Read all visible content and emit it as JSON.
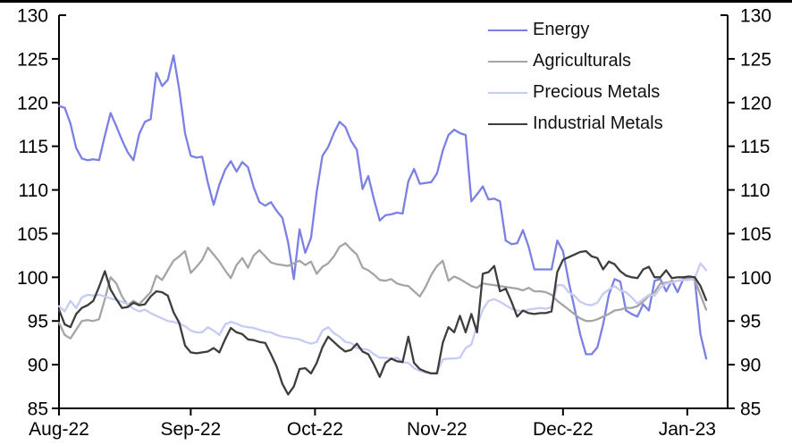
{
  "page": {
    "background": "#ffffff",
    "top_border_color": "#000000",
    "axis_color": "#000000"
  },
  "chart_data": {
    "type": "line",
    "title": "",
    "xlabel": "",
    "ylabel": "",
    "legend_position": "top-right-inside",
    "x_axis": {
      "tick_labels": [
        "Aug-22",
        "Sep-22",
        "Oct-22",
        "Nov-22",
        "Dec-22",
        "Jan-23"
      ],
      "tick_indices": [
        0,
        23,
        44.7,
        66,
        88,
        109.7
      ],
      "start": "2022-08-01",
      "end": "2023-01-05",
      "frequency": "business-daily"
    },
    "y_axis": {
      "min": 85,
      "max": 130,
      "step": 5,
      "ticks": [
        85,
        90,
        95,
        100,
        105,
        110,
        115,
        120,
        125,
        130
      ],
      "label_sides": "both",
      "grid": false
    },
    "n_points": 114,
    "series": [
      {
        "name": "Energy",
        "color": "#7b80e4",
        "values": [
          119.6,
          119.4,
          117.6,
          114.8,
          113.6,
          113.4,
          113.5,
          113.4,
          116.2,
          118.8,
          117.3,
          115.7,
          114.3,
          113.4,
          116.4,
          117.8,
          118.1,
          123.4,
          121.9,
          122.6,
          125.4,
          121.5,
          116.5,
          113.9,
          113.7,
          113.8,
          110.8,
          108.3,
          110.6,
          112.3,
          113.3,
          112.1,
          113.2,
          112.6,
          110.3,
          108.6,
          108.2,
          108.6,
          107.6,
          106.8,
          104.0,
          99.8,
          105.5,
          102.8,
          104.5,
          109.8,
          113.9,
          114.9,
          116.5,
          117.8,
          117.2,
          115.6,
          114.6,
          110.1,
          111.6,
          108.9,
          106.5,
          107.1,
          107.2,
          107.4,
          107.3,
          111.0,
          112.4,
          110.7,
          110.8,
          110.9,
          111.9,
          114.5,
          116.3,
          116.9,
          116.5,
          116.3,
          108.7,
          109.5,
          110.4,
          108.9,
          109.0,
          108.7,
          104.2,
          103.8,
          103.9,
          105.4,
          103.5,
          100.9,
          100.9,
          100.9,
          100.9,
          104.2,
          103.0,
          99.5,
          96.5,
          93.5,
          91.2,
          91.2,
          92.0,
          94.6,
          98.0,
          99.8,
          99.5,
          96.2,
          95.8,
          95.5,
          96.9,
          96.2,
          99.6,
          99.8,
          98.4,
          99.6,
          98.3,
          99.8,
          99.9,
          99.8,
          93.5,
          90.7
        ]
      },
      {
        "name": "Agriculturals",
        "color": "#a5a5a5",
        "values": [
          94.8,
          93.4,
          93.0,
          94.0,
          95.0,
          95.1,
          95.0,
          95.2,
          97.5,
          100.0,
          99.3,
          97.8,
          96.8,
          97.3,
          96.9,
          97.6,
          98.3,
          100.2,
          99.7,
          100.8,
          101.9,
          102.4,
          103.0,
          100.5,
          101.2,
          102.0,
          103.4,
          102.6,
          101.8,
          100.8,
          99.9,
          101.4,
          102.2,
          101.1,
          102.5,
          103.1,
          102.4,
          101.7,
          101.5,
          101.4,
          101.3,
          101.6,
          101.9,
          101.4,
          101.8,
          100.4,
          101.2,
          101.6,
          102.4,
          103.5,
          103.9,
          103.2,
          102.6,
          101.1,
          100.8,
          100.3,
          99.7,
          99.6,
          99.8,
          99.3,
          99.1,
          99.0,
          98.4,
          97.8,
          98.9,
          100.3,
          101.3,
          101.9,
          99.6,
          100.1,
          99.8,
          99.4,
          99.0,
          98.8,
          99.3,
          99.2,
          99.1,
          99.0,
          98.9,
          98.8,
          98.7,
          98.5,
          98.8,
          98.4,
          98.4,
          98.3,
          98.0,
          97.3,
          96.8,
          96.3,
          95.8,
          95.3,
          95.0,
          95.0,
          95.2,
          95.5,
          95.8,
          96.2,
          96.3,
          96.5,
          96.5,
          96.7,
          97.2,
          97.9,
          98.3,
          99.3,
          99.4,
          99.5,
          99.6,
          99.7,
          99.9,
          99.7,
          98.0,
          96.3
        ]
      },
      {
        "name": "Precious Metals",
        "color": "#c6cbf4",
        "values": [
          96.7,
          96.1,
          97.3,
          96.5,
          97.7,
          98.0,
          97.9,
          98.0,
          97.8,
          97.6,
          97.4,
          97.2,
          96.9,
          96.4,
          96.1,
          96.3,
          95.9,
          95.6,
          95.3,
          95.0,
          94.9,
          94.7,
          94.4,
          93.9,
          93.7,
          93.7,
          94.3,
          93.9,
          93.4,
          94.6,
          94.9,
          94.7,
          94.4,
          94.3,
          94.2,
          94.0,
          93.8,
          93.7,
          93.4,
          93.2,
          93.1,
          93.0,
          92.9,
          92.6,
          92.4,
          92.6,
          93.9,
          94.3,
          93.6,
          93.2,
          92.6,
          92.5,
          91.9,
          91.8,
          91.7,
          91.2,
          90.8,
          90.8,
          90.7,
          90.8,
          90.3,
          90.2,
          89.6,
          89.3,
          89.1,
          89.0,
          89.1,
          90.6,
          90.7,
          90.7,
          90.8,
          91.9,
          92.3,
          94.5,
          96.3,
          97.3,
          97.5,
          97.2,
          96.8,
          96.4,
          96.2,
          96.1,
          96.3,
          96.4,
          96.5,
          96.4,
          96.6,
          99.1,
          99.1,
          98.3,
          97.9,
          97.2,
          96.9,
          96.8,
          97.1,
          98.1,
          98.6,
          99.0,
          98.5,
          98.3,
          97.7,
          97.0,
          97.5,
          98.0,
          97.9,
          98.8,
          99.3,
          99.4,
          99.6,
          99.7,
          99.7,
          99.9,
          101.6,
          100.8
        ]
      },
      {
        "name": "Industrial Metals",
        "color": "#3d3d3d",
        "values": [
          96.3,
          94.6,
          94.3,
          95.8,
          96.5,
          96.8,
          97.3,
          98.9,
          100.7,
          98.6,
          97.5,
          96.5,
          96.6,
          97.1,
          96.8,
          96.9,
          97.8,
          98.4,
          98.3,
          97.9,
          96.0,
          94.8,
          92.2,
          91.4,
          91.3,
          91.4,
          91.5,
          91.9,
          91.4,
          92.9,
          94.2,
          93.7,
          93.5,
          92.9,
          92.8,
          92.6,
          92.5,
          91.2,
          89.8,
          87.8,
          86.6,
          87.5,
          89.5,
          89.6,
          89.0,
          90.2,
          92.0,
          93.2,
          92.6,
          92.0,
          91.5,
          91.7,
          92.4,
          91.5,
          91.2,
          90.0,
          88.6,
          90.2,
          90.7,
          90.4,
          90.3,
          93.2,
          90.2,
          89.5,
          89.2,
          89.0,
          89.0,
          92.5,
          94.3,
          93.7,
          95.6,
          93.7,
          95.8,
          93.7,
          100.4,
          100.6,
          101.3,
          98.4,
          98.7,
          97.2,
          95.5,
          96.2,
          95.9,
          95.8,
          95.9,
          95.9,
          96.1,
          100.6,
          102.0,
          102.3,
          102.6,
          102.9,
          103.0,
          102.4,
          102.2,
          100.9,
          101.8,
          101.5,
          100.7,
          100.2,
          100.0,
          99.9,
          100.9,
          101.2,
          100.0,
          100.0,
          100.8,
          99.9,
          100.0,
          100.0,
          100.1,
          100.0,
          99.0,
          97.4
        ]
      }
    ]
  }
}
